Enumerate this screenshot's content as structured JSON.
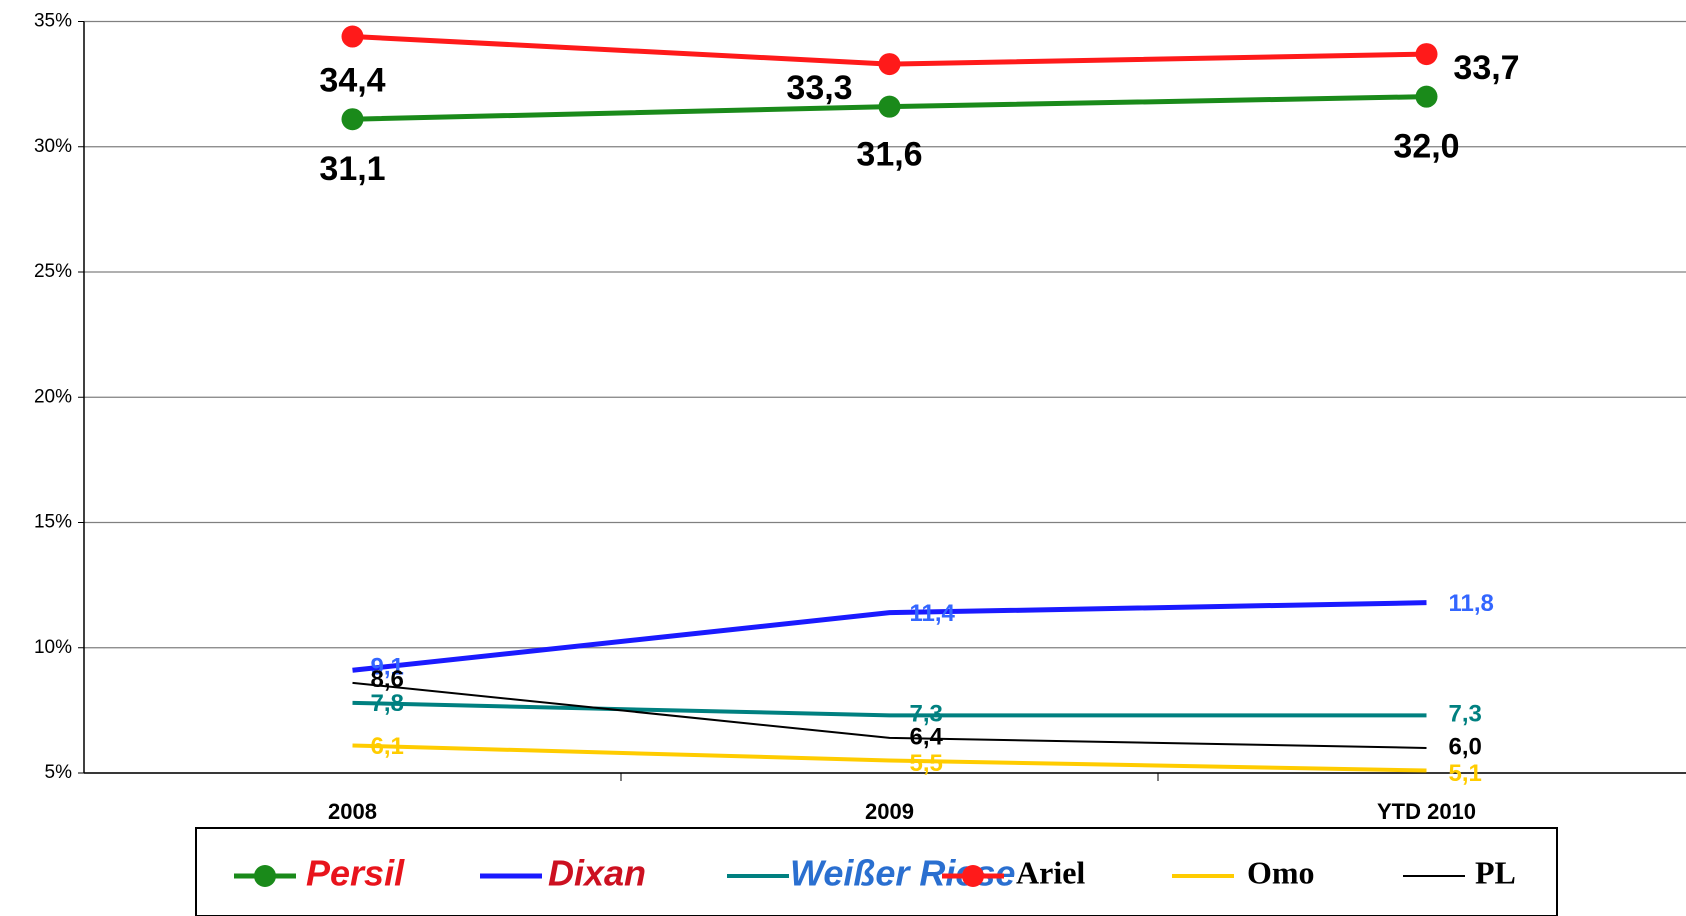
{
  "chart_data": {
    "type": "line",
    "categories": [
      "2008",
      "2009",
      "YTD 2010"
    ],
    "ylim": [
      5,
      35
    ],
    "yticks": [
      {
        "value": 5,
        "label": "5%"
      },
      {
        "value": 10,
        "label": "10%"
      },
      {
        "value": 15,
        "label": "15%"
      },
      {
        "value": 20,
        "label": "20%"
      },
      {
        "value": 25,
        "label": "25%"
      },
      {
        "value": 30,
        "label": "30%"
      },
      {
        "value": 35,
        "label": "35%"
      }
    ],
    "grid": true,
    "series": [
      {
        "name": "Persil",
        "color": "#1a8a1a",
        "values": [
          31.1,
          31.6,
          32.0
        ],
        "value_labels": [
          "31,1",
          "31,6",
          "32,0"
        ]
      },
      {
        "name": "Dixan",
        "color": "#1a1aff",
        "values": [
          9.1,
          11.4,
          11.8
        ],
        "value_labels": [
          "9,1",
          "11,4",
          "11,8"
        ]
      },
      {
        "name": "Weißer Riese",
        "color": "#008080",
        "values": [
          7.8,
          7.3,
          7.3
        ],
        "value_labels": [
          "7,8",
          "7,3",
          "7,3"
        ]
      },
      {
        "name": "Ariel",
        "color": "#ff1a1a",
        "values": [
          34.4,
          33.3,
          33.7
        ],
        "value_labels": [
          "34,4",
          "33,3",
          "33,7"
        ]
      },
      {
        "name": "Omo",
        "color": "#ffcc00",
        "values": [
          6.1,
          5.5,
          5.1
        ],
        "value_labels": [
          "6,1",
          "5,5",
          "5,1"
        ]
      },
      {
        "name": "PL",
        "color": "#000000",
        "values": [
          8.6,
          6.4,
          6.0
        ],
        "value_labels": [
          "8,6",
          "6,4",
          "6,0"
        ]
      }
    ]
  }
}
